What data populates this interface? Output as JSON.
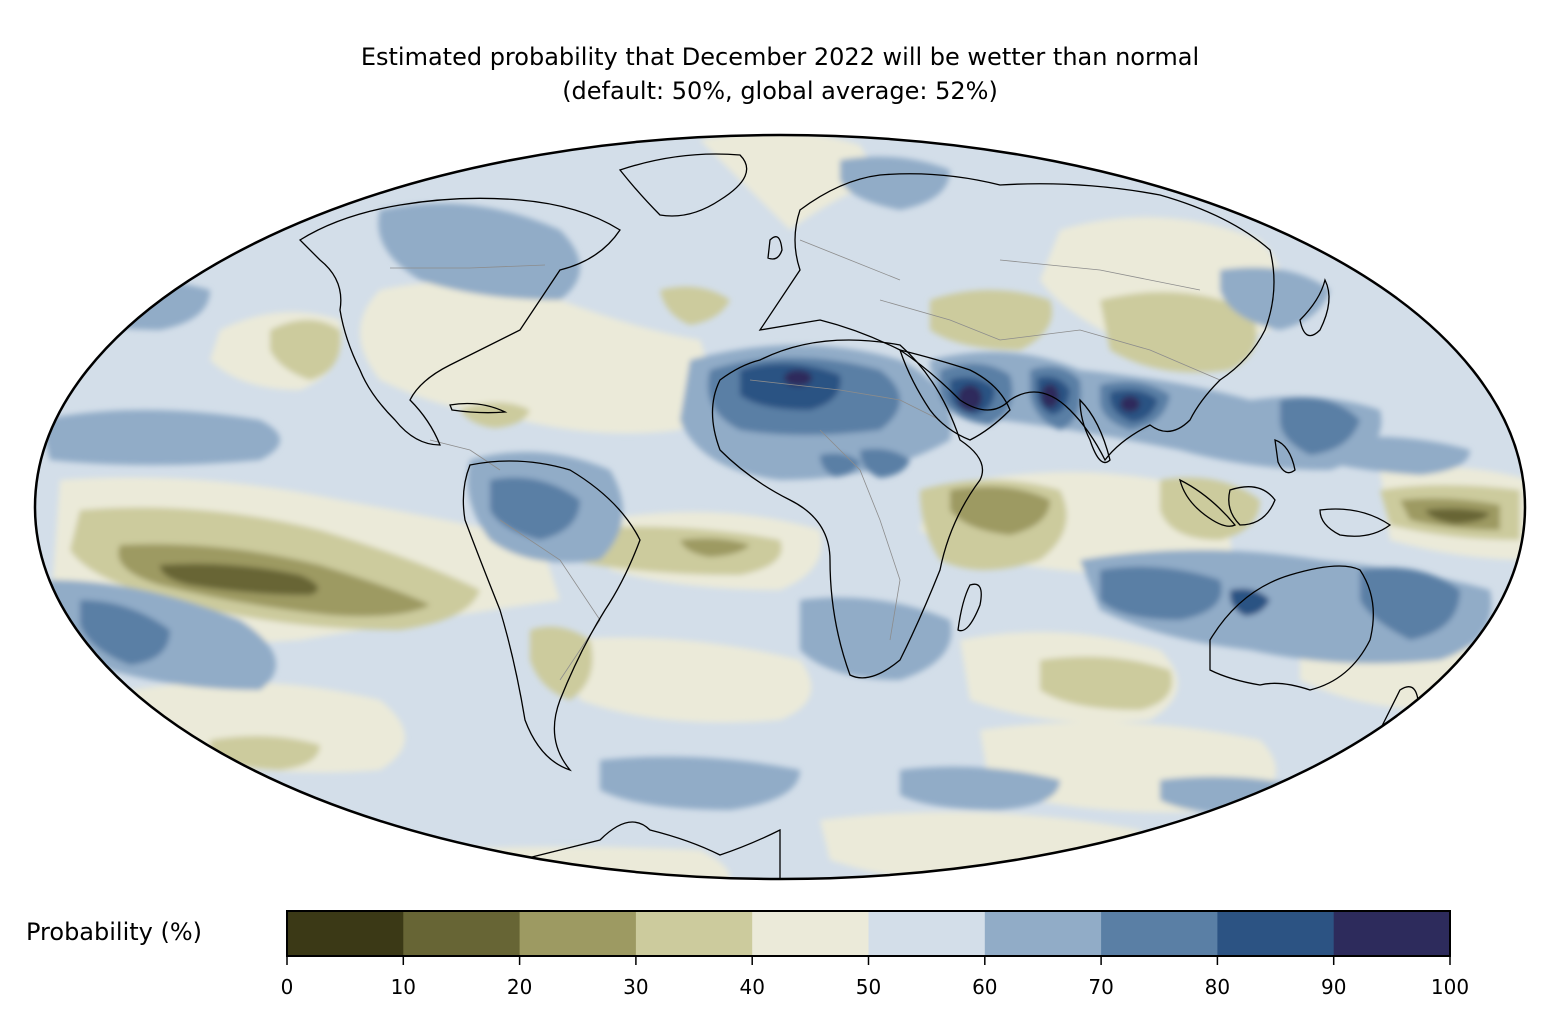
{
  "title": {
    "line1": "Estimated probability that December 2022 will be wetter than normal",
    "line2": "(default: 50%, global average: 52%)"
  },
  "colorbar": {
    "label": "Probability (%)",
    "ticks": [
      "0",
      "10",
      "20",
      "30",
      "40",
      "50",
      "60",
      "70",
      "80",
      "90",
      "100"
    ],
    "bins": [
      {
        "range": "0-10",
        "color": "#3b3916"
      },
      {
        "range": "10-20",
        "color": "#676535"
      },
      {
        "range": "20-30",
        "color": "#9d9a62"
      },
      {
        "range": "30-40",
        "color": "#cccb9d"
      },
      {
        "range": "40-50",
        "color": "#ebead9"
      },
      {
        "range": "50-60",
        "color": "#d3dee9"
      },
      {
        "range": "60-70",
        "color": "#91acc7"
      },
      {
        "range": "70-80",
        "color": "#5a7fa5"
      },
      {
        "range": "80-90",
        "color": "#2c5383"
      },
      {
        "range": "90-100",
        "color": "#2d2b5c"
      }
    ]
  },
  "map": {
    "projection": "Mollweide",
    "background_color": "#d3dee9",
    "coastline_color": "#000000",
    "border_color": "#8c8c8c"
  }
}
